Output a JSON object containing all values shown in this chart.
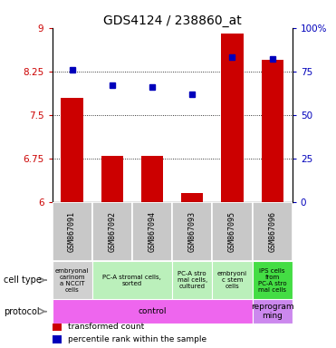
{
  "title": "GDS4124 / 238860_at",
  "samples": [
    "GSM867091",
    "GSM867092",
    "GSM867094",
    "GSM867093",
    "GSM867095",
    "GSM867096"
  ],
  "bar_values": [
    7.8,
    6.8,
    6.8,
    6.15,
    8.9,
    8.45
  ],
  "percentile_values": [
    76,
    67,
    66,
    62,
    83,
    82
  ],
  "ylim_left": [
    6,
    9
  ],
  "ylim_right": [
    0,
    100
  ],
  "yticks_left": [
    6,
    6.75,
    7.5,
    8.25,
    9
  ],
  "yticks_right": [
    0,
    25,
    50,
    75,
    100
  ],
  "bar_color": "#cc0000",
  "dot_color": "#0000bb",
  "cell_types": [
    {
      "text": "embryonal\ncarinom\na NCCIT\ncells",
      "col": "#d0d0d0",
      "span": [
        0,
        1
      ]
    },
    {
      "text": "PC-A stromal cells,\nsorted",
      "col": "#bbf0bb",
      "span": [
        1,
        3
      ]
    },
    {
      "text": "PC-A stro\nmal cells,\ncultured",
      "col": "#bbf0bb",
      "span": [
        3,
        4
      ]
    },
    {
      "text": "embryoni\nc stem\ncells",
      "col": "#bbf0bb",
      "span": [
        4,
        5
      ]
    },
    {
      "text": "iPS cells\nfrom\nPC-A stro\nmal cells",
      "col": "#44dd44",
      "span": [
        5,
        6
      ]
    }
  ],
  "protocols": [
    {
      "text": "control",
      "col": "#ee66ee",
      "span": [
        0,
        5
      ]
    },
    {
      "text": "reprogram\nming",
      "col": "#cc88ee",
      "span": [
        5,
        6
      ]
    }
  ],
  "legend_items": [
    {
      "color": "#cc0000",
      "label": "transformed count"
    },
    {
      "color": "#0000bb",
      "label": "percentile rank within the sample"
    }
  ]
}
